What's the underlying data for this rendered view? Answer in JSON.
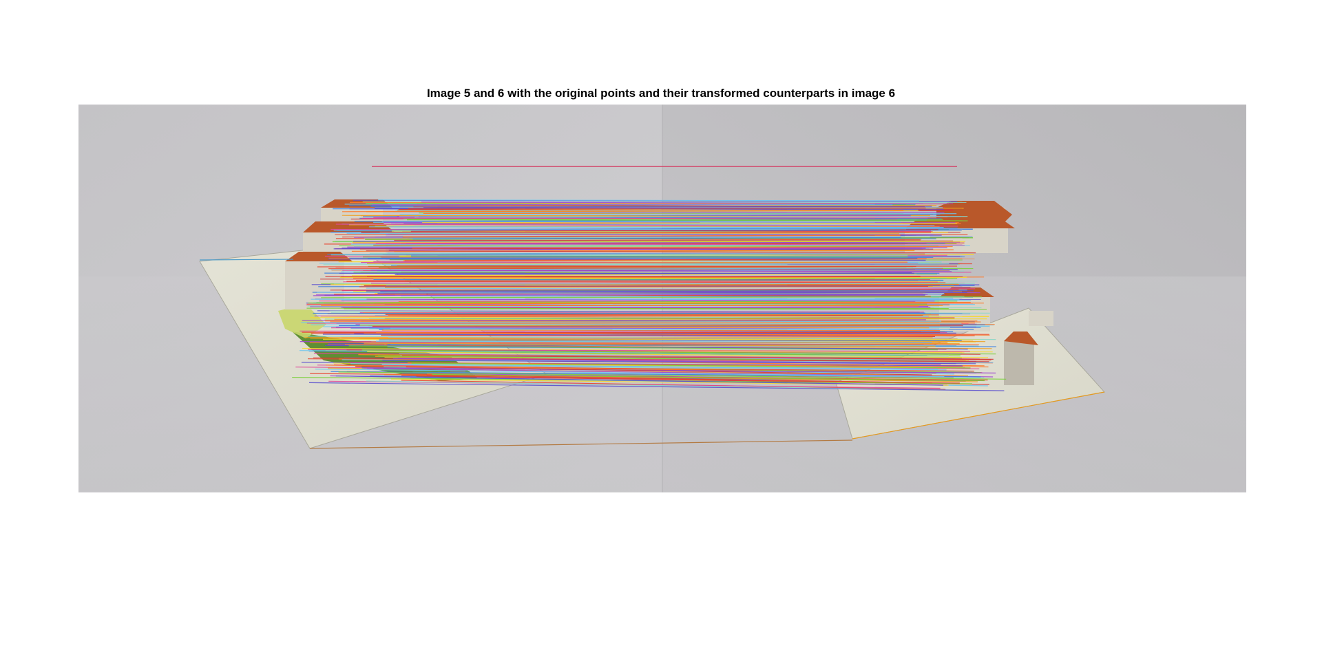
{
  "figure": {
    "title": "Image 5 and 6 with the original points and their transformed counterparts in image 6"
  },
  "scene": {
    "description_colors": {
      "wall_left": "#c9c8cb",
      "wall_right": "#bdbcbf",
      "floor": "#cfced1",
      "paper": "#dfded1",
      "roof": "#b9582a",
      "building": "#d8d4c8",
      "lawn": "#5f8f34"
    },
    "match_line_palette": [
      "#e8452f",
      "#f0a020",
      "#f5d832",
      "#6ec6f0",
      "#3d7fe0",
      "#a04bd0",
      "#7ad03a",
      "#e0489a",
      "#8dd8c8",
      "#ff7a2a",
      "#5a4fcf",
      "#d23a3a"
    ],
    "line_count": 420
  }
}
